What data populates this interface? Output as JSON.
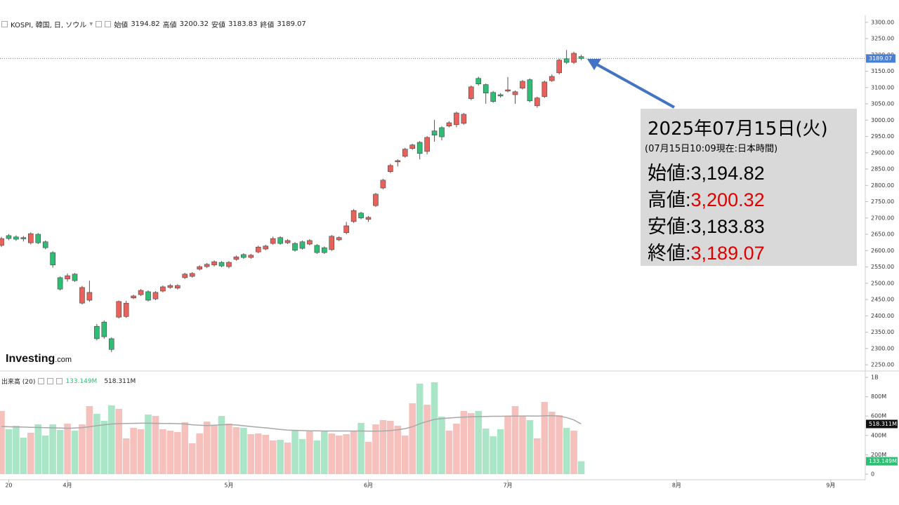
{
  "chart_data": [
    {
      "type": "candlestick",
      "title": "KOSPI, 韓国, 日, ソウル",
      "legend_labels": {
        "open": "始値",
        "high": "高値",
        "low": "安値",
        "close": "終値"
      },
      "up_color": "#e8625b",
      "down_color": "#2dbd74",
      "price_line_color": "#4a7fd4",
      "ylim": [
        2233,
        3321
      ],
      "yticks": [
        {
          "value": 2250,
          "label": "2250.00"
        },
        {
          "value": 2300,
          "label": "2300.00"
        },
        {
          "value": 2350,
          "label": "2350.00"
        },
        {
          "value": 2400,
          "label": "2400.00"
        },
        {
          "value": 2450,
          "label": "2450.00"
        },
        {
          "value": 2500,
          "label": "2500.00"
        },
        {
          "value": 2550,
          "label": "2550.00"
        },
        {
          "value": 2600,
          "label": "2600.00"
        },
        {
          "value": 2650,
          "label": "2650.00"
        },
        {
          "value": 2700,
          "label": "2700.00"
        },
        {
          "value": 2750,
          "label": "2750.00"
        },
        {
          "value": 2800,
          "label": "2800.00"
        },
        {
          "value": 2850,
          "label": "2850.00"
        },
        {
          "value": 2900,
          "label": "2900.00"
        },
        {
          "value": 2950,
          "label": "2950.00"
        },
        {
          "value": 3000,
          "label": "3000.00"
        },
        {
          "value": 3050,
          "label": "3050.00"
        },
        {
          "value": 3100,
          "label": "3100.00"
        },
        {
          "value": 3150,
          "label": "3150.00"
        },
        {
          "value": 3200,
          "label": "3200.00"
        },
        {
          "value": 3250,
          "label": "3250.00"
        },
        {
          "value": 3300,
          "label": "3300.00"
        }
      ],
      "open": [
        2616,
        2646,
        2642,
        2640,
        2624,
        2650,
        2627,
        2594,
        2517,
        2513,
        2528,
        2439,
        2448,
        2368,
        2381,
        2330,
        2396,
        2398,
        2455,
        2465,
        2474,
        2452,
        2476,
        2487,
        2485,
        2517,
        2521,
        2543,
        2551,
        2556,
        2564,
        2551,
        2573,
        2588,
        2579,
        2596,
        2605,
        2622,
        2640,
        2624,
        2622,
        2627,
        2620,
        2616,
        2609,
        2603,
        2633,
        2655,
        2689,
        2715,
        2696,
        2738,
        2792,
        2842,
        2872,
        2889,
        2913,
        2932,
        2904,
        2967,
        2977,
        2982,
        2986,
        2990,
        3066,
        3128,
        3109,
        3085,
        3078,
        3089,
        3078,
        3098,
        3124,
        3044,
        3072,
        3121,
        3145,
        3188,
        3177,
        3194.82
      ],
      "high": [
        2642,
        2651,
        2647,
        2645,
        2656,
        2654,
        2631,
        2598,
        2521,
        2530,
        2531,
        2492,
        2508,
        2375,
        2386,
        2334,
        2447,
        2446,
        2465,
        2482,
        2478,
        2476,
        2493,
        2498,
        2497,
        2532,
        2534,
        2555,
        2562,
        2570,
        2568,
        2568,
        2585,
        2592,
        2590,
        2615,
        2618,
        2643,
        2644,
        2635,
        2626,
        2631,
        2635,
        2620,
        2613,
        2648,
        2644,
        2688,
        2727,
        2719,
        2706,
        2777,
        2820,
        2866,
        2880,
        2915,
        2928,
        2936,
        2951,
        3001,
        2981,
        2997,
        3026,
        3022,
        3106,
        3133,
        3112,
        3089,
        3083,
        3132,
        3091,
        3123,
        3128,
        3072,
        3121,
        3140,
        3188,
        3215,
        3210,
        3200.32
      ],
      "low": [
        2611,
        2632,
        2630,
        2628,
        2619,
        2620,
        2604,
        2548,
        2478,
        2505,
        2504,
        2435,
        2443,
        2325,
        2330,
        2289,
        2392,
        2394,
        2451,
        2461,
        2444,
        2448,
        2472,
        2483,
        2481,
        2513,
        2517,
        2539,
        2547,
        2551,
        2549,
        2546,
        2569,
        2575,
        2575,
        2592,
        2601,
        2618,
        2618,
        2620,
        2597,
        2603,
        2616,
        2590,
        2590,
        2599,
        2629,
        2650,
        2685,
        2696,
        2688,
        2734,
        2788,
        2838,
        2858,
        2885,
        2909,
        2880,
        2895,
        2934,
        2938,
        2978,
        2978,
        2986,
        3061,
        3106,
        3050,
        3053,
        3069,
        3085,
        3050,
        3094,
        3055,
        3038,
        3068,
        3117,
        3140,
        3172,
        3172,
        3183.83
      ],
      "close": [
        2637,
        2637,
        2635,
        2636,
        2652,
        2624,
        2609,
        2556,
        2482,
        2523,
        2508,
        2487,
        2472,
        2330,
        2336,
        2297,
        2444,
        2439,
        2461,
        2478,
        2448,
        2472,
        2489,
        2493,
        2493,
        2528,
        2530,
        2551,
        2558,
        2566,
        2553,
        2564,
        2581,
        2579,
        2586,
        2611,
        2614,
        2637,
        2622,
        2631,
        2601,
        2607,
        2631,
        2594,
        2594,
        2644,
        2640,
        2676,
        2723,
        2700,
        2702,
        2773,
        2816,
        2861,
        2876,
        2911,
        2924,
        2898,
        2947,
        2954,
        2949,
        2992,
        3022,
        3018,
        3102,
        3111,
        3083,
        3057,
        3074,
        3093,
        3087,
        3119,
        3059,
        3068,
        3117,
        3134,
        3184,
        3177,
        3205,
        3189.07
      ]
    },
    {
      "type": "bar",
      "title": "出来高 (20)",
      "categories": [
        null,
        "20",
        null,
        null,
        null,
        null,
        null,
        null,
        null,
        "4月",
        null,
        null,
        null,
        null,
        null,
        null,
        null,
        null,
        null,
        null,
        null,
        null,
        null,
        null,
        null,
        null,
        null,
        null,
        null,
        null,
        null,
        "5月",
        null,
        null,
        null,
        null,
        null,
        null,
        null,
        null,
        null,
        null,
        null,
        null,
        null,
        null,
        null,
        null,
        null,
        null,
        "6月",
        null,
        null,
        null,
        null,
        null,
        null,
        null,
        null,
        null,
        null,
        null,
        null,
        null,
        null,
        null,
        null,
        null,
        null,
        "7月",
        null,
        null,
        null,
        null,
        null,
        null,
        null,
        null,
        null,
        null,
        null,
        null,
        null,
        null,
        null,
        null,
        null,
        null,
        null,
        null,
        null,
        null,
        "8月",
        null,
        null,
        null,
        null,
        null,
        null,
        null,
        null,
        null,
        null,
        null,
        null,
        null,
        null,
        null,
        null,
        null,
        null,
        null,
        null,
        "9月",
        null,
        null,
        null
      ],
      "values": [
        652,
        464,
        500,
        377,
        428,
        514,
        399,
        514,
        457,
        522,
        449,
        514,
        703,
        623,
        551,
        710,
        674,
        370,
        478,
        464,
        616,
        601,
        464,
        449,
        435,
        536,
        319,
        420,
        543,
        500,
        601,
        522,
        486,
        478,
        413,
        420,
        406,
        348,
        355,
        326,
        457,
        362,
        442,
        348,
        449,
        420,
        399,
        413,
        442,
        529,
        333,
        514,
        558,
        551,
        500,
        399,
        732,
        935,
        717,
        949,
        594,
        449,
        522,
        652,
        630,
        652,
        471,
        391,
        464,
        594,
        703,
        601,
        558,
        370,
        746,
        645,
        609,
        478,
        449,
        133.149,
        null,
        null,
        null,
        null,
        null,
        null,
        null,
        null,
        null,
        null,
        null,
        null,
        null,
        null,
        null,
        null,
        null,
        null,
        null,
        null,
        null,
        null,
        null,
        null,
        null,
        null,
        null,
        null,
        null,
        null,
        null,
        null,
        null,
        null,
        null,
        null,
        null
      ],
      "value_labels": [
        null,
        null,
        null,
        null,
        null,
        null,
        null,
        null,
        null,
        null,
        null,
        null,
        null,
        null,
        null,
        null,
        null,
        null,
        null,
        null,
        null,
        null,
        null,
        null,
        null,
        null,
        null,
        null,
        null,
        null,
        null,
        null,
        null,
        null,
        null,
        null,
        null,
        null,
        null,
        null,
        null,
        null,
        null,
        null,
        null,
        null,
        null,
        null,
        null,
        null,
        null,
        null,
        null,
        null,
        null,
        null,
        null,
        null,
        null,
        null,
        null,
        null,
        null,
        null,
        null,
        null,
        null,
        null,
        null,
        null,
        null,
        null,
        null,
        null,
        null,
        null,
        null,
        null,
        null,
        "133.149M",
        null,
        null,
        null,
        null,
        null,
        null,
        null,
        null,
        null,
        null,
        null,
        null,
        null,
        null,
        null,
        null,
        null,
        null,
        null,
        null,
        null,
        null,
        null,
        null,
        null,
        null,
        null,
        null,
        null,
        null,
        null,
        null,
        null,
        null,
        null,
        null,
        null
      ],
      "label_color": "#2dbd74",
      "ma": {
        "color": "#a8a8a8",
        "values": [
          493,
          490,
          488,
          486,
          484,
          482,
          480,
          478,
          476,
          474,
          476,
          480,
          490,
          500,
          510,
          518,
          522,
          524,
          525,
          526,
          526,
          525,
          524,
          523,
          522,
          518,
          510,
          505,
          502,
          505,
          510,
          512,
          508,
          500,
          492,
          485,
          478,
          470,
          462,
          455,
          452,
          450,
          448,
          447,
          446,
          446,
          446,
          446,
          446,
          446,
          445,
          444,
          446,
          450,
          458,
          470,
          490,
          520,
          545,
          565,
          575,
          580,
          585,
          590,
          592,
          594,
          596,
          598,
          598,
          599,
          600,
          601,
          601,
          600,
          602,
          604,
          600,
          585,
          560,
          518.311,
          null,
          null,
          null,
          null,
          null,
          null,
          null,
          null,
          null,
          null,
          null,
          null,
          null,
          null,
          null,
          null,
          null,
          null,
          null,
          null,
          null,
          null,
          null,
          null,
          null,
          null,
          null,
          null,
          null,
          null,
          null,
          null,
          null,
          null,
          null,
          null,
          null
        ],
        "value_labels": [
          null,
          null,
          null,
          null,
          null,
          null,
          null,
          null,
          null,
          null,
          null,
          null,
          null,
          null,
          null,
          null,
          null,
          null,
          null,
          null,
          null,
          null,
          null,
          null,
          null,
          null,
          null,
          null,
          null,
          null,
          null,
          null,
          null,
          null,
          null,
          null,
          null,
          null,
          null,
          null,
          null,
          null,
          null,
          null,
          null,
          null,
          null,
          null,
          null,
          null,
          null,
          null,
          null,
          null,
          null,
          null,
          null,
          null,
          null,
          null,
          null,
          null,
          null,
          null,
          null,
          null,
          null,
          null,
          null,
          null,
          null,
          null,
          null,
          null,
          null,
          null,
          null,
          null,
          null,
          "518.311M",
          null,
          null,
          null,
          null,
          null,
          null,
          null,
          null,
          null,
          null,
          null,
          null,
          null,
          null,
          null,
          null,
          null,
          null,
          null,
          null,
          null,
          null,
          null,
          null,
          null,
          null,
          null,
          null,
          null,
          null,
          null,
          null,
          null,
          null,
          null,
          null,
          null
        ]
      },
      "ylim": [
        -58,
        1058
      ],
      "yticks": [
        0,
        {
          "value": 200,
          "label": "200M"
        },
        {
          "value": 400,
          "label": "400M"
        },
        {
          "value": 600,
          "label": "600M"
        },
        {
          "value": 800,
          "label": "800M"
        },
        {
          "value": 1000,
          "label": "1B"
        }
      ]
    }
  ],
  "annotation": {
    "date": "2025年07月15日(火)",
    "note": "(07月15日10:09現在:日本時間)",
    "rows": [
      {
        "label": "始値:",
        "value": "3,194.82",
        "color": "#000000"
      },
      {
        "label": "高値:",
        "value": "3,200.32",
        "color": "#e00000"
      },
      {
        "label": "安値:",
        "value": "3,183.83",
        "color": "#000000"
      },
      {
        "label": "終値:",
        "value": "3,189.07",
        "color": "#e00000"
      }
    ]
  },
  "watermark": {
    "brand": "Investing",
    "suffix": ".com"
  }
}
